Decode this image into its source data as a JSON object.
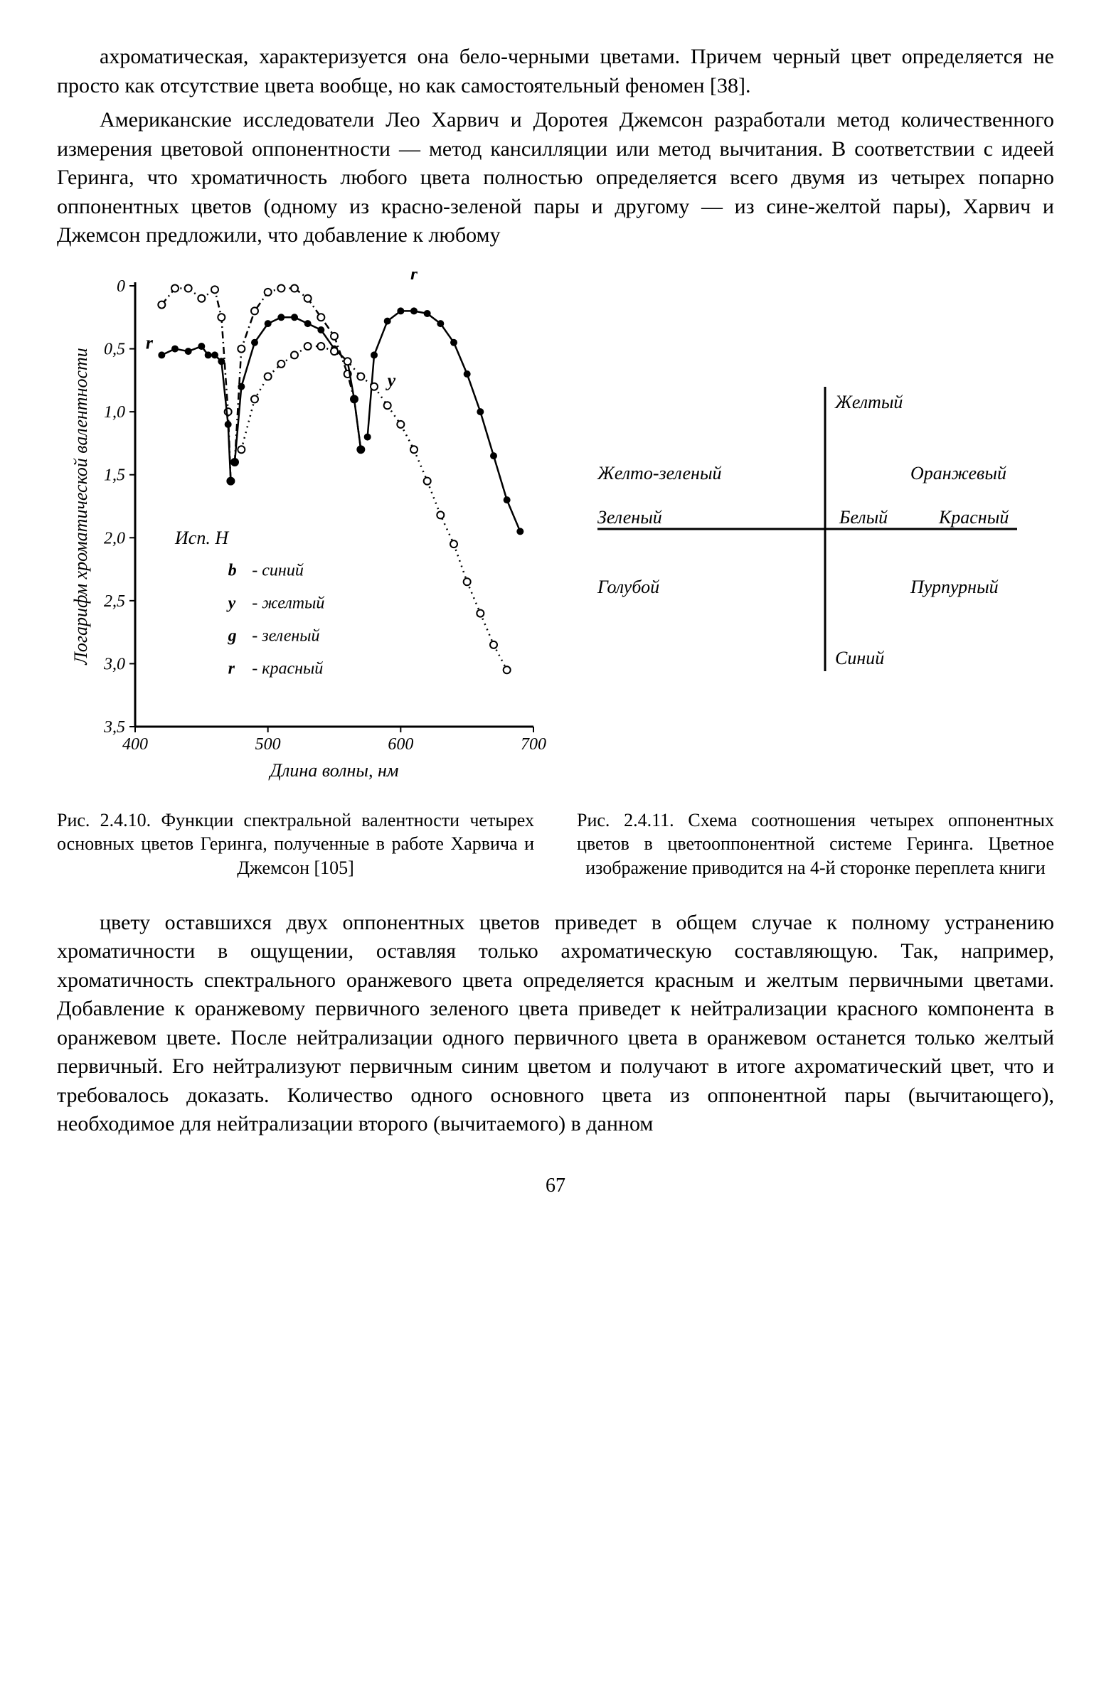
{
  "paragraphs": {
    "p1": "ахроматическая, характеризуется она бело-черными цветами. Причем черный цвет определяется не просто как отсутствие цвета вообще, но как самостоятельный феномен [38].",
    "p2": "Американские исследователи Лео Харвич и Доротея Джемсон разработали метод количественного измерения цветовой оппонентности — метод кансилляции или метод вычитания. В соответствии с идеей Геринга, что хроматичность любого цвета полностью определяется всего двумя из четырех попарно оппонентных цветов (одному из красно-зеленой пары и другому — из сине-желтой пары), Харвич и Джемсон предложили, что добавление к любому",
    "p3": "цвету оставшихся двух оппонентных цветов приведет в общем случае к полному устранению хроматичности в ощущении, оставляя только ахроматическую составляющую. Так, например, хроматичность спектрального оранжевого цвета определяется красным и желтым первичными цветами. Добавление к оранжевому первичного зеленого цвета приведет к нейтрализации красного компонента в оранжевом цвете. После нейтрализации одного первичного цвета в оранжевом останется только желтый первичный. Его нейтрализуют первичным синим цветом и получают в итоге ахроматический цвет, что и требовалось доказать. Количество одного основного цвета из оппонентной пары (вычитающего), необходимое для нейтрализации второго (вычитаемого) в данном"
  },
  "captions": {
    "c1": "Рис. 2.4.10. Функции спектральной валентности четырех основных цветов Геринга, полученные в работе Харвича и Джемсон [105]",
    "c2": "Рис. 2.4.11. Схема соотношения четырех оппонентных цветов в цветооппонентной системе Геринга. Цветное изображение приводится на 4-й сторонке переплета книги"
  },
  "page_number": "67",
  "figure_left": {
    "type": "line",
    "y_axis_label": "Логарифм хроматической валентности",
    "x_axis_label": "Длина волны, нм",
    "y_ticks": [
      "0",
      "0,5",
      "1,0",
      "1,5",
      "2,0",
      "2,5",
      "3,0",
      "3,5"
    ],
    "y_lim": [
      0,
      3.5
    ],
    "x_ticks": [
      "400",
      "500",
      "600",
      "700"
    ],
    "x_lim": [
      400,
      700
    ],
    "curve_labels": {
      "b": "b",
      "g": "g",
      "r": "r",
      "y": "y",
      "r_left": "r"
    },
    "legend_title": "Исп. H",
    "legend_items": [
      {
        "short": "b",
        "label": "синий"
      },
      {
        "short": "y",
        "label": "желтый"
      },
      {
        "short": "g",
        "label": "зеленый"
      },
      {
        "short": "r",
        "label": "красный"
      }
    ],
    "colors": {
      "axis": "#000000",
      "curve_solid": "#000000",
      "curve_dashdot": "#000000",
      "curve_dotted": "#000000",
      "marker_fill_solid": "#000000",
      "marker_fill_open": "#ffffff",
      "background": "#ffffff"
    },
    "series": {
      "b_open": {
        "marker": "circle-open",
        "line_style": "dashdot",
        "points": [
          [
            420,
            0.15
          ],
          [
            430,
            0.02
          ],
          [
            440,
            0.02
          ],
          [
            450,
            0.1
          ],
          [
            460,
            0.03
          ],
          [
            465,
            0.25
          ],
          [
            470,
            1.0
          ],
          [
            472,
            1.55
          ]
        ]
      },
      "r_left_solid": {
        "marker": "circle-solid",
        "line_style": "solid",
        "points": [
          [
            420,
            0.55
          ],
          [
            430,
            0.5
          ],
          [
            440,
            0.52
          ],
          [
            450,
            0.48
          ],
          [
            455,
            0.55
          ],
          [
            460,
            0.55
          ],
          [
            465,
            0.6
          ],
          [
            470,
            1.1
          ],
          [
            472,
            1.55
          ]
        ]
      },
      "g_open": {
        "marker": "circle-open",
        "line_style": "dashdot",
        "points": [
          [
            475,
            1.4
          ],
          [
            480,
            0.5
          ],
          [
            490,
            0.2
          ],
          [
            500,
            0.05
          ],
          [
            510,
            0.02
          ],
          [
            520,
            0.02
          ],
          [
            530,
            0.1
          ],
          [
            540,
            0.25
          ],
          [
            550,
            0.4
          ],
          [
            560,
            0.7
          ],
          [
            565,
            0.9
          ],
          [
            570,
            1.3
          ]
        ]
      },
      "g_solid": {
        "marker": "circle-solid",
        "line_style": "solid",
        "points": [
          [
            475,
            1.4
          ],
          [
            480,
            0.8
          ],
          [
            490,
            0.45
          ],
          [
            500,
            0.3
          ],
          [
            510,
            0.25
          ],
          [
            520,
            0.25
          ],
          [
            530,
            0.3
          ],
          [
            540,
            0.35
          ],
          [
            550,
            0.5
          ],
          [
            560,
            0.6
          ],
          [
            565,
            0.9
          ],
          [
            570,
            1.3
          ]
        ]
      },
      "r_solid": {
        "marker": "circle-solid",
        "line_style": "solid",
        "points": [
          [
            575,
            1.2
          ],
          [
            580,
            0.55
          ],
          [
            590,
            0.28
          ],
          [
            600,
            0.2
          ],
          [
            610,
            0.2
          ],
          [
            620,
            0.22
          ],
          [
            630,
            0.3
          ],
          [
            640,
            0.45
          ],
          [
            650,
            0.7
          ],
          [
            660,
            1.0
          ],
          [
            670,
            1.35
          ],
          [
            680,
            1.7
          ],
          [
            690,
            1.95
          ]
        ]
      },
      "y_open": {
        "marker": "circle-open",
        "line_style": "dotted",
        "points": [
          [
            480,
            1.3
          ],
          [
            490,
            0.9
          ],
          [
            500,
            0.72
          ],
          [
            510,
            0.62
          ],
          [
            520,
            0.55
          ],
          [
            530,
            0.48
          ],
          [
            540,
            0.48
          ],
          [
            550,
            0.52
          ],
          [
            560,
            0.6
          ],
          [
            570,
            0.72
          ],
          [
            580,
            0.8
          ],
          [
            590,
            0.95
          ],
          [
            600,
            1.1
          ],
          [
            610,
            1.3
          ],
          [
            620,
            1.55
          ],
          [
            630,
            1.82
          ],
          [
            640,
            2.05
          ],
          [
            650,
            2.35
          ],
          [
            660,
            2.6
          ],
          [
            670,
            2.85
          ],
          [
            680,
            3.05
          ]
        ]
      }
    }
  },
  "figure_right": {
    "type": "diagram",
    "colors": {
      "line": "#000000",
      "text": "#000000",
      "background": "#ffffff"
    },
    "labels": {
      "top": "Желтый",
      "bottom": "Синий",
      "left_top": "Желто-зеленый",
      "left_mid": "Зеленый",
      "left_bottom": "Голубой",
      "right_top": "Оранжевый",
      "right_mid_left": "Белый",
      "right_mid_right": "Красный",
      "right_bottom": "Пурпурный"
    },
    "font_size_pt": 22,
    "font_style": "italic"
  }
}
